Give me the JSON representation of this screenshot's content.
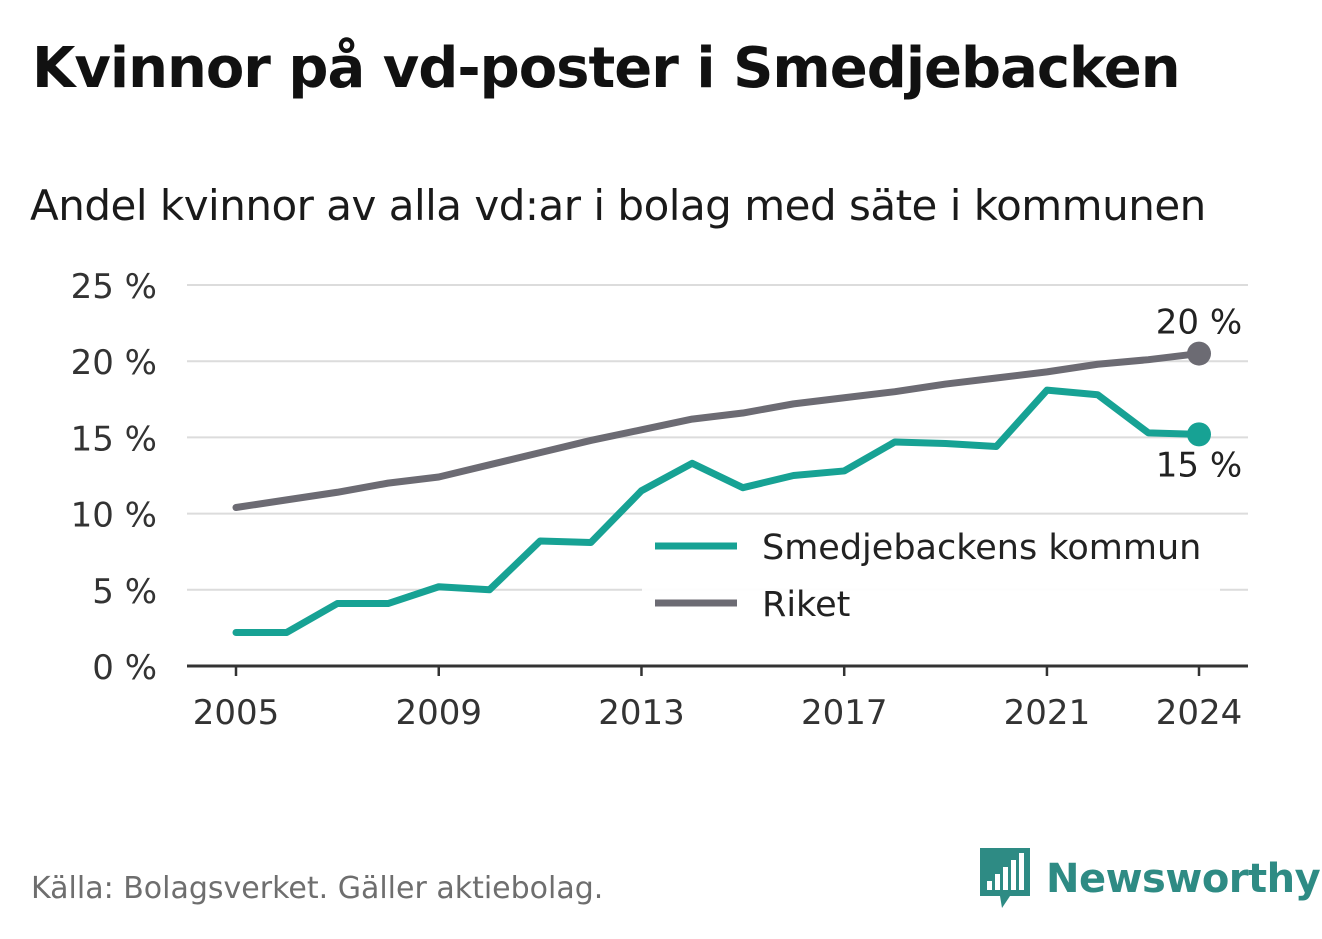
{
  "title": "Kvinnor på vd-poster i Smedjebacken",
  "subtitle": "Andel kvinnor av alla vd:ar i bolag med säte i kommunen",
  "source": "Källa: Bolagsverket. Gäller aktiebolag.",
  "brand": {
    "name": "Newsworthy",
    "icon": "bar-chart-speech-bubble-icon",
    "color": "#2e8b84"
  },
  "chart_data": {
    "type": "line",
    "x": [
      2005,
      2006,
      2007,
      2008,
      2009,
      2010,
      2011,
      2012,
      2013,
      2014,
      2015,
      2016,
      2017,
      2018,
      2019,
      2020,
      2021,
      2022,
      2023,
      2024
    ],
    "series": [
      {
        "name": "Smedjebackens kommun",
        "color": "#17a294",
        "values": [
          2.2,
          2.2,
          4.1,
          4.1,
          5.2,
          5.0,
          8.2,
          8.1,
          11.5,
          13.3,
          11.7,
          12.5,
          12.8,
          14.7,
          14.6,
          14.4,
          18.1,
          17.8,
          15.3,
          15.2
        ],
        "end_label": "15 %"
      },
      {
        "name": "Riket",
        "color": "#6c6b73",
        "values": [
          10.4,
          10.9,
          11.4,
          12.0,
          12.4,
          13.2,
          14.0,
          14.8,
          15.5,
          16.2,
          16.6,
          17.2,
          17.6,
          18.0,
          18.5,
          18.9,
          19.3,
          19.8,
          20.1,
          20.5
        ],
        "end_label": "20 %"
      }
    ],
    "ylim": [
      0,
      25
    ],
    "y_ticks": [
      0,
      5,
      10,
      15,
      20,
      25
    ],
    "y_tick_labels": [
      "0 %",
      "5 %",
      "10 %",
      "15 %",
      "20 %",
      "25 %"
    ],
    "x_ticks": [
      2005,
      2009,
      2013,
      2017,
      2021,
      2024
    ],
    "x_tick_labels": [
      "2005",
      "2009",
      "2013",
      "2017",
      "2021",
      "2024"
    ],
    "xlabel": "",
    "ylabel": "",
    "grid": true,
    "legend_position": "bottom-right"
  }
}
